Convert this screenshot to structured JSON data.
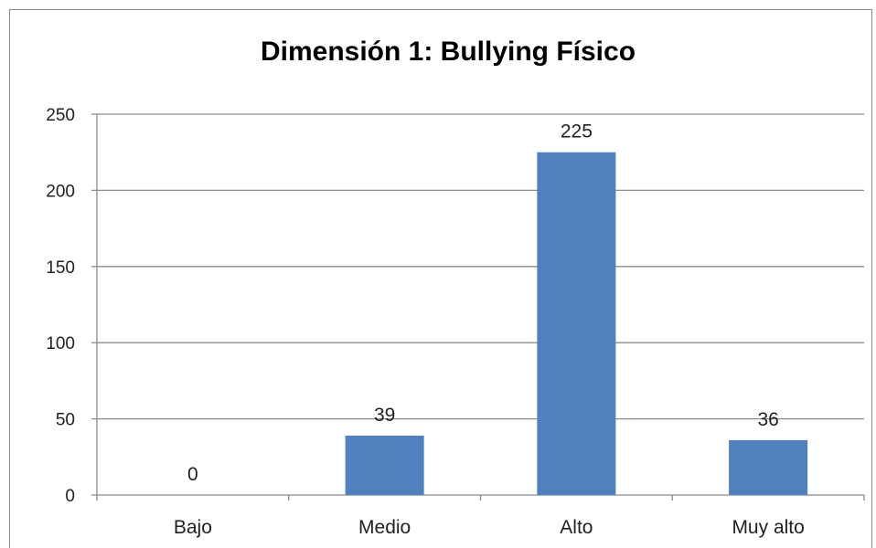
{
  "chart_data": {
    "type": "bar",
    "title": "Dimensión 1: Bullying Físico",
    "categories": [
      "Bajo",
      "Medio",
      "Alto",
      "Muy alto"
    ],
    "values": [
      0,
      39,
      225,
      36
    ],
    "data_labels": [
      "0",
      "39",
      "225",
      "36"
    ],
    "xlabel": "",
    "ylabel": "",
    "ylim": [
      0,
      250
    ],
    "yticks": [
      0,
      50,
      100,
      150,
      200,
      250
    ],
    "grid": true,
    "legend": "none",
    "colors": {
      "bar": "#4f81bd",
      "grid": "#8c8c8c",
      "axis": "#8c8c8c"
    }
  }
}
